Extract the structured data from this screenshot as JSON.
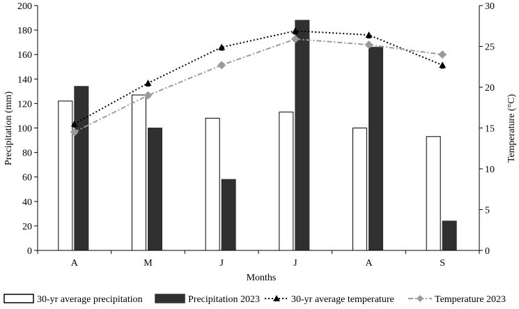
{
  "chart_data": {
    "type": "bar+line",
    "categories": [
      "A",
      "M",
      "J",
      "J",
      "A",
      "S"
    ],
    "xlabel": "Months",
    "ylabel": "Precipitation (mm)",
    "y2label": "Temperature (°C)",
    "ylim": [
      0,
      200
    ],
    "y2lim": [
      0,
      30
    ],
    "yticks": [
      0,
      20,
      40,
      60,
      80,
      100,
      120,
      140,
      160,
      180,
      200
    ],
    "y2ticks": [
      0,
      5,
      10,
      15,
      20,
      25,
      30
    ],
    "grid": false,
    "legend_position": "bottom",
    "bar_series": [
      {
        "name": "30-yr average precipitation",
        "values": [
          122,
          127,
          108,
          113,
          100,
          93
        ],
        "fill": "#ffffff",
        "stroke": "#000000"
      },
      {
        "name": "Precipitation 2023",
        "values": [
          134,
          100,
          58,
          188,
          166,
          24
        ],
        "fill": "#303030",
        "stroke": "#303030"
      }
    ],
    "line_series": [
      {
        "name": "30-yr average temperature",
        "values": [
          15.5,
          20.5,
          24.9,
          26.9,
          26.4,
          22.7
        ],
        "color": "#000000",
        "dash": "2,3",
        "marker": "triangle"
      },
      {
        "name": "Temperature 2023",
        "values": [
          14.5,
          19.0,
          22.7,
          25.9,
          25.2,
          24.0
        ],
        "color": "#9a9a9a",
        "dash": "7,3,2,3",
        "marker": "diamond"
      }
    ]
  }
}
